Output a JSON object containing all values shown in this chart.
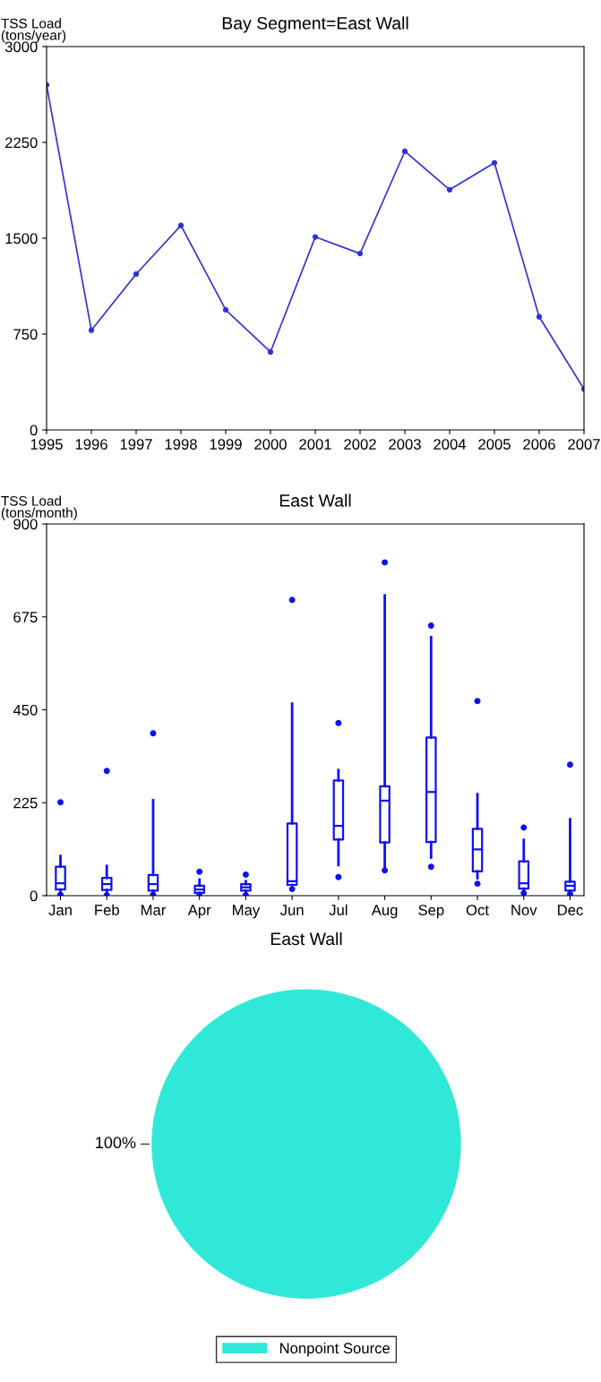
{
  "chart_data": [
    {
      "type": "line",
      "title": "Bay Segment=East Wall",
      "ylabel": "TSS Load\n(tons/year)",
      "marker": "circle",
      "x": [
        1995,
        1996,
        1997,
        1998,
        1999,
        2000,
        2001,
        2002,
        2003,
        2004,
        2005,
        2006,
        2007
      ],
      "xlim": [
        1995,
        2007
      ],
      "xticks": [
        1995,
        1996,
        1997,
        1998,
        1999,
        2000,
        2001,
        2002,
        2003,
        2004,
        2005,
        2006,
        2007
      ],
      "ylim": [
        0,
        3000
      ],
      "yticks": [
        0,
        750,
        1500,
        2250,
        3000
      ],
      "series": [
        {
          "color": "#3030d8",
          "values": [
            2700,
            780,
            1220,
            1600,
            940,
            610,
            1510,
            1380,
            2180,
            1880,
            2090,
            885,
            320
          ]
        }
      ]
    },
    {
      "type": "box",
      "title": "East Wall",
      "ylabel": "TSS Load\n(tons/month)",
      "categories": [
        "Jan",
        "Feb",
        "Mar",
        "Apr",
        "May",
        "Jun",
        "Jul",
        "Aug",
        "Sep",
        "Oct",
        "Nov",
        "Dec"
      ],
      "ylim": [
        0,
        900
      ],
      "yticks": [
        0,
        225,
        450,
        675,
        900
      ],
      "series": [
        {
          "color": "#1010f0",
          "boxes": [
            {
              "low": 8,
              "q1": 15,
              "median": 30,
              "q3": 70,
              "high": 96,
              "outliers": [
                226,
                2
              ]
            },
            {
              "low": 8,
              "q1": 14,
              "median": 28,
              "q3": 43,
              "high": 72,
              "outliers": [
                302,
                1
              ]
            },
            {
              "low": 7,
              "q1": 12,
              "median": 28,
              "q3": 50,
              "high": 231,
              "outliers": [
                393,
                2
              ]
            },
            {
              "low": 4,
              "q1": 7,
              "median": 15,
              "q3": 24,
              "high": 39,
              "outliers": [
                58,
                0
              ]
            },
            {
              "low": 7,
              "q1": 12,
              "median": 20,
              "q3": 28,
              "high": 35,
              "outliers": [
                51,
                1
              ]
            },
            {
              "low": 26,
              "q1": 26,
              "median": 35,
              "q3": 175,
              "high": 465,
              "outliers": [
                716,
                16
              ]
            },
            {
              "low": 74,
              "q1": 136,
              "median": 169,
              "q3": 279,
              "high": 304,
              "outliers": [
                418,
                45
              ]
            },
            {
              "low": 66,
              "q1": 129,
              "median": 230,
              "q3": 265,
              "high": 727,
              "outliers": [
                807,
                61
              ]
            },
            {
              "low": 92,
              "q1": 130,
              "median": 251,
              "q3": 383,
              "high": 626,
              "outliers": [
                654,
                70
              ]
            },
            {
              "low": 42,
              "q1": 59,
              "median": 112,
              "q3": 162,
              "high": 246,
              "outliers": [
                471,
                29
              ]
            },
            {
              "low": 12,
              "q1": 17,
              "median": 30,
              "q3": 83,
              "high": 135,
              "outliers": [
                165,
                6
              ]
            },
            {
              "low": 8,
              "q1": 12,
              "median": 24,
              "q3": 34,
              "high": 185,
              "outliers": [
                317,
                4
              ]
            }
          ]
        }
      ]
    },
    {
      "type": "pie",
      "title": "East Wall",
      "categories": [
        "Nonpoint Source"
      ],
      "values": [
        100
      ],
      "colors": [
        "#30e8d8"
      ],
      "value_labels": [
        "100%"
      ],
      "legend": "bottom"
    }
  ]
}
